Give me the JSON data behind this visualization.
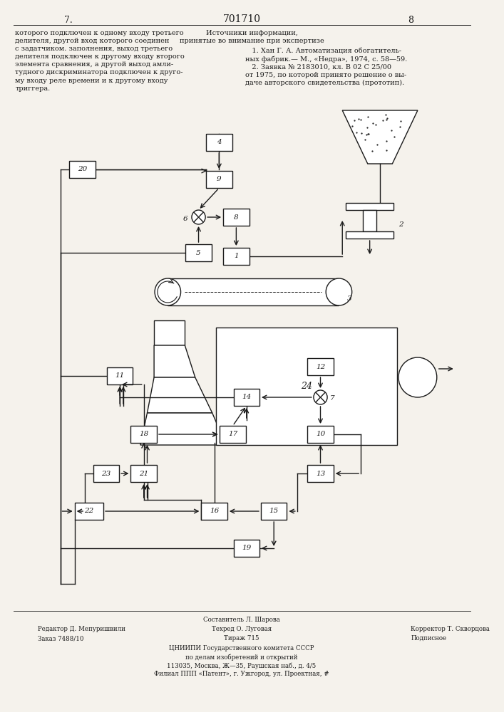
{
  "title": "701710",
  "page_left": "7.",
  "page_right": "8",
  "text_left": "которого подключен к одному входу третьего\nделителя, другой вход которого соединен\nс задатчиком. заполнения, выход третьего\nделителя подключен к другому входу второго\nэлемента сравнения, а другой выход амли-\nтудного дискриминатора подключен к друго-\nму входу реле времени и к другому входу\nтриггера.",
  "text_right_title": "Источники информации,\nпринятые во внимание при экспертизе",
  "text_right_body": "   1. Хан Г. А. Автоматизация обогатитель-\nных фабрик.— М., «Недра», 1974, с. 58—59.\n   2. Заявка № 2183010, кл. В 02 С 25/00\nот 1975, по которой принято решение о вы-\nдаче авторского свидетельства (прототип).",
  "footer_c1r1": "Составитель Л. Шарова",
  "footer_l1": "Редактор Д. Мепуришвили",
  "footer_c1r2": "Техред О. Луговая",
  "footer_r1": "Корректор Т. Скворцова",
  "footer_l2": "Заказ 7488/10",
  "footer_c1r3": "Тираж 715",
  "footer_r2": "Подписное",
  "footer_org1": "ЦНИИПИ Государственного комитета СССР",
  "footer_org2": "по делам изобретений и открытий",
  "footer_org3": "113035, Москва, Ж—35, Раушская наб., д. 4/5",
  "footer_org4": "Филиал ППП «Патент», г. Ужгород, ул. Проектная, #",
  "bg_color": "#f5f2ec",
  "line_color": "#1a1a1a"
}
